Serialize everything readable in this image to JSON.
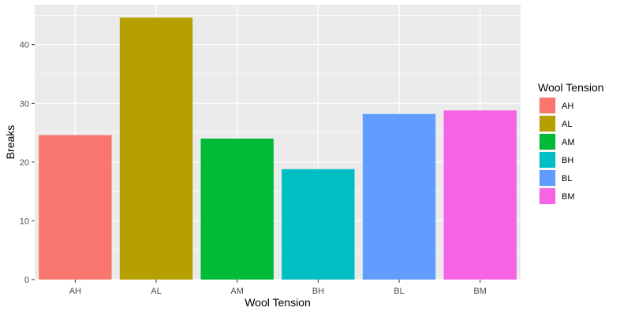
{
  "chart_data": {
    "type": "bar",
    "categories": [
      "AH",
      "AL",
      "AM",
      "BH",
      "BL",
      "BM"
    ],
    "values": [
      24.6,
      44.6,
      24.0,
      18.8,
      28.2,
      28.8
    ],
    "xlabel": "Wool Tension",
    "ylabel": "Breaks",
    "ylim": [
      0,
      46.8
    ],
    "yticks": [
      0,
      10,
      20,
      30,
      40
    ],
    "grid": true,
    "legend": {
      "title": "Wool Tension",
      "placement": "right",
      "entries": [
        "AH",
        "AL",
        "AM",
        "BH",
        "BL",
        "BM"
      ]
    },
    "colors": [
      "#F8766D",
      "#B79F00",
      "#00BA38",
      "#00BFC4",
      "#619CFF",
      "#F564E3"
    ],
    "panel_background": "#EBEBEB",
    "grid_color": "#FFFFFF"
  }
}
